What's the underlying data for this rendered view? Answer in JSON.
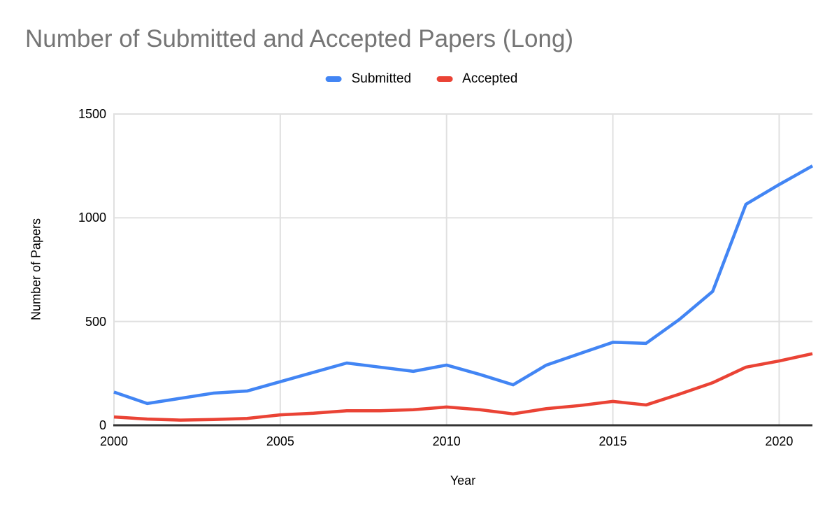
{
  "title": "Number of Submitted and Accepted Papers (Long)",
  "legend": {
    "items": [
      {
        "label": "Submitted",
        "color": "#4285F4"
      },
      {
        "label": "Accepted",
        "color": "#EA4335"
      }
    ]
  },
  "axes": {
    "x_title": "Year",
    "y_title": "Number of Papers",
    "y_tick_labels": [
      "0",
      "500",
      "1000",
      "1500"
    ],
    "x_tick_labels": [
      "2000",
      "2005",
      "2010",
      "2015",
      "2020"
    ]
  },
  "colors": {
    "title_text": "#757575",
    "axis_text": "#000000",
    "gridline": "#E0E0E0",
    "axis_line": "#333333",
    "background": "#FFFFFF",
    "submitted_line": "#4285F4",
    "accepted_line": "#EA4335"
  },
  "chart_data": {
    "type": "line",
    "title": "Number of Submitted and Accepted Papers (Long)",
    "xlabel": "Year",
    "ylabel": "Number of Papers",
    "x": [
      2000,
      2001,
      2002,
      2003,
      2004,
      2005,
      2006,
      2007,
      2008,
      2009,
      2010,
      2011,
      2012,
      2013,
      2014,
      2015,
      2016,
      2017,
      2018,
      2019,
      2020,
      2021
    ],
    "series": [
      {
        "name": "Submitted",
        "color": "#4285F4",
        "values": [
          160,
          105,
          130,
          155,
          165,
          210,
          255,
          300,
          280,
          260,
          290,
          245,
          195,
          290,
          345,
          400,
          395,
          510,
          645,
          1065,
          1160,
          1250
        ]
      },
      {
        "name": "Accepted",
        "color": "#EA4335",
        "values": [
          40,
          30,
          25,
          28,
          33,
          50,
          58,
          70,
          70,
          75,
          88,
          75,
          55,
          80,
          95,
          115,
          98,
          150,
          205,
          280,
          310,
          345
        ]
      }
    ],
    "xlim": [
      2000,
      2021
    ],
    "ylim": [
      0,
      1500
    ],
    "y_ticks": [
      0,
      500,
      1000,
      1500
    ],
    "x_ticks": [
      2000,
      2005,
      2010,
      2015,
      2020
    ],
    "grid": true,
    "legend_position": "top"
  }
}
